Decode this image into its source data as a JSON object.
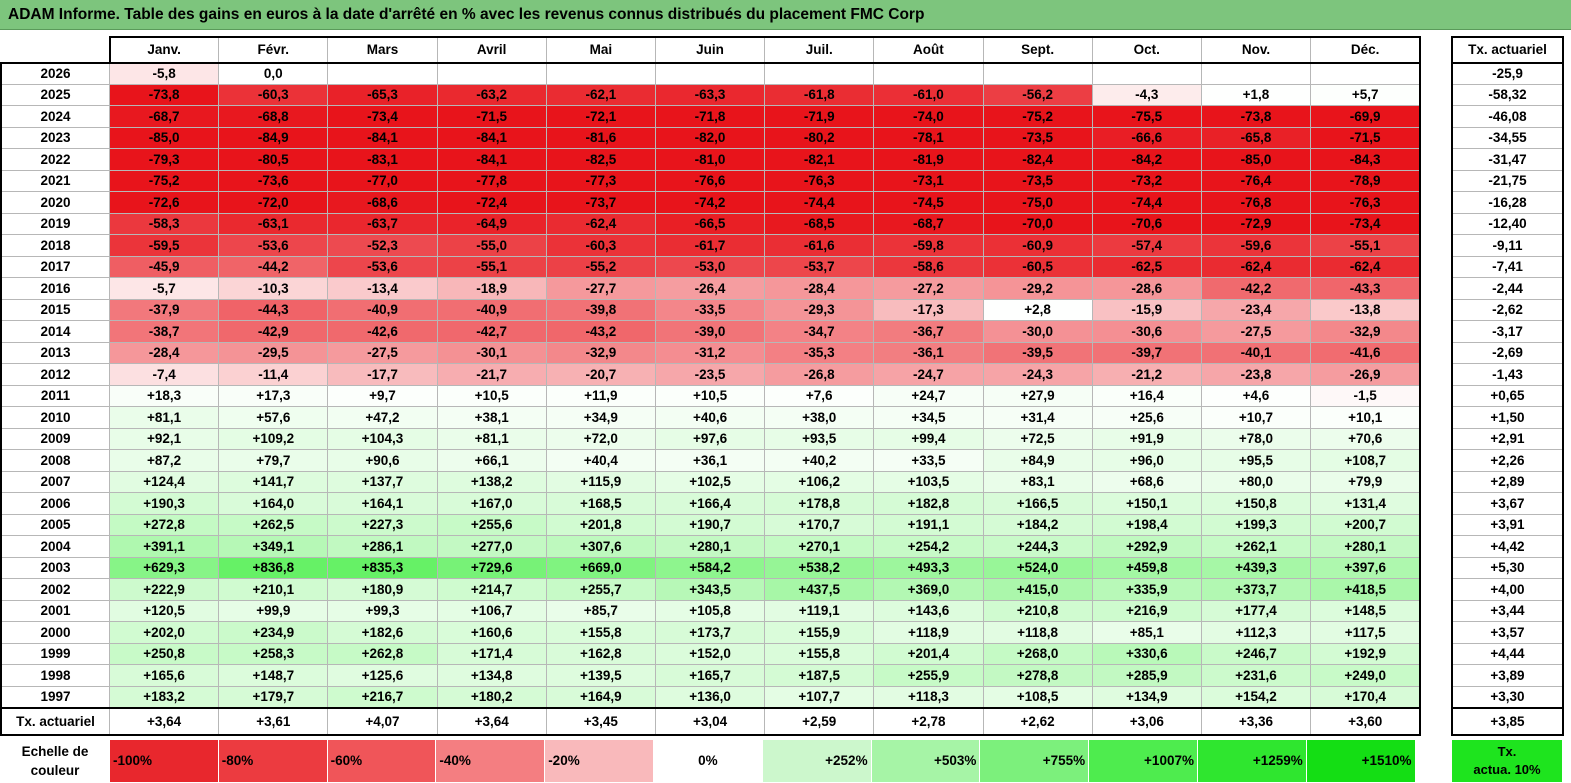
{
  "title": "ADAM Informe. Table des gains en euros à la date d'arrêté en % avec les revenus connus distribués du placement FMC Corp",
  "months": [
    "Janv.",
    "Févr.",
    "Mars",
    "Avril",
    "Mai",
    "Juin",
    "Juil.",
    "Août",
    "Sept.",
    "Oct.",
    "Nov.",
    "Déc."
  ],
  "ta_header": "Tx. actuariel",
  "rows": [
    {
      "year": "2026",
      "values": [
        "-5,8",
        "0,0",
        "",
        "",
        "",
        "",
        "",
        "",
        "",
        "",
        "",
        ""
      ],
      "ta": "-25,9"
    },
    {
      "year": "2025",
      "values": [
        "-73,8",
        "-60,3",
        "-65,3",
        "-63,2",
        "-62,1",
        "-63,3",
        "-61,8",
        "-61,0",
        "-56,2",
        "-4,3",
        "+1,8",
        "+5,7"
      ],
      "ta": "-58,32"
    },
    {
      "year": "2024",
      "values": [
        "-68,7",
        "-68,8",
        "-73,4",
        "-71,5",
        "-72,1",
        "-71,8",
        "-71,9",
        "-74,0",
        "-75,2",
        "-75,5",
        "-73,8",
        "-69,9"
      ],
      "ta": "-46,08"
    },
    {
      "year": "2023",
      "values": [
        "-85,0",
        "-84,9",
        "-84,1",
        "-84,1",
        "-81,6",
        "-82,0",
        "-80,2",
        "-78,1",
        "-73,5",
        "-66,6",
        "-65,8",
        "-71,5"
      ],
      "ta": "-34,55"
    },
    {
      "year": "2022",
      "values": [
        "-79,3",
        "-80,5",
        "-83,1",
        "-84,1",
        "-82,5",
        "-81,0",
        "-82,1",
        "-81,9",
        "-82,4",
        "-84,2",
        "-85,0",
        "-84,3"
      ],
      "ta": "-31,47"
    },
    {
      "year": "2021",
      "values": [
        "-75,2",
        "-73,6",
        "-77,0",
        "-77,8",
        "-77,3",
        "-76,6",
        "-76,3",
        "-73,1",
        "-73,5",
        "-73,2",
        "-76,4",
        "-78,9"
      ],
      "ta": "-21,75"
    },
    {
      "year": "2020",
      "values": [
        "-72,6",
        "-72,0",
        "-68,6",
        "-72,4",
        "-73,7",
        "-74,2",
        "-74,4",
        "-74,5",
        "-75,0",
        "-74,4",
        "-76,8",
        "-76,3"
      ],
      "ta": "-16,28"
    },
    {
      "year": "2019",
      "values": [
        "-58,3",
        "-63,1",
        "-63,7",
        "-64,9",
        "-62,4",
        "-66,5",
        "-68,5",
        "-68,7",
        "-70,0",
        "-70,6",
        "-72,9",
        "-73,4"
      ],
      "ta": "-12,40"
    },
    {
      "year": "2018",
      "values": [
        "-59,5",
        "-53,6",
        "-52,3",
        "-55,0",
        "-60,3",
        "-61,7",
        "-61,6",
        "-59,8",
        "-60,9",
        "-57,4",
        "-59,6",
        "-55,1"
      ],
      "ta": "-9,11"
    },
    {
      "year": "2017",
      "values": [
        "-45,9",
        "-44,2",
        "-53,6",
        "-55,1",
        "-55,2",
        "-53,0",
        "-53,7",
        "-58,6",
        "-60,5",
        "-62,5",
        "-62,4",
        "-62,4"
      ],
      "ta": "-7,41"
    },
    {
      "year": "2016",
      "values": [
        "-5,7",
        "-10,3",
        "-13,4",
        "-18,9",
        "-27,7",
        "-26,4",
        "-28,4",
        "-27,2",
        "-29,2",
        "-28,6",
        "-42,2",
        "-43,3"
      ],
      "ta": "-2,44"
    },
    {
      "year": "2015",
      "values": [
        "-37,9",
        "-44,3",
        "-40,9",
        "-40,9",
        "-39,8",
        "-33,5",
        "-29,3",
        "-17,3",
        "+2,8",
        "-15,9",
        "-23,4",
        "-13,8"
      ],
      "ta": "-2,62"
    },
    {
      "year": "2014",
      "values": [
        "-38,7",
        "-42,9",
        "-42,6",
        "-42,7",
        "-43,2",
        "-39,0",
        "-34,7",
        "-36,7",
        "-30,0",
        "-30,6",
        "-27,5",
        "-32,9"
      ],
      "ta": "-3,17"
    },
    {
      "year": "2013",
      "values": [
        "-28,4",
        "-29,5",
        "-27,5",
        "-30,1",
        "-32,9",
        "-31,2",
        "-35,3",
        "-36,1",
        "-39,5",
        "-39,7",
        "-40,1",
        "-41,6"
      ],
      "ta": "-2,69"
    },
    {
      "year": "2012",
      "values": [
        "-7,4",
        "-11,4",
        "-17,7",
        "-21,7",
        "-20,7",
        "-23,5",
        "-26,8",
        "-24,7",
        "-24,3",
        "-21,2",
        "-23,8",
        "-26,9"
      ],
      "ta": "-1,43"
    },
    {
      "year": "2011",
      "values": [
        "+18,3",
        "+17,3",
        "+9,7",
        "+10,5",
        "+11,9",
        "+10,5",
        "+7,6",
        "+24,7",
        "+27,9",
        "+16,4",
        "+4,6",
        "-1,5"
      ],
      "ta": "+0,65"
    },
    {
      "year": "2010",
      "values": [
        "+81,1",
        "+57,6",
        "+47,2",
        "+38,1",
        "+34,9",
        "+40,6",
        "+38,0",
        "+34,5",
        "+31,4",
        "+25,6",
        "+10,7",
        "+10,1"
      ],
      "ta": "+1,50"
    },
    {
      "year": "2009",
      "values": [
        "+92,1",
        "+109,2",
        "+104,3",
        "+81,1",
        "+72,0",
        "+97,6",
        "+93,5",
        "+99,4",
        "+72,5",
        "+91,9",
        "+78,0",
        "+70,6"
      ],
      "ta": "+2,91"
    },
    {
      "year": "2008",
      "values": [
        "+87,2",
        "+79,7",
        "+90,6",
        "+66,1",
        "+40,4",
        "+36,1",
        "+40,2",
        "+33,5",
        "+84,9",
        "+96,0",
        "+95,5",
        "+108,7"
      ],
      "ta": "+2,26"
    },
    {
      "year": "2007",
      "values": [
        "+124,4",
        "+141,7",
        "+137,7",
        "+138,2",
        "+115,9",
        "+102,5",
        "+106,2",
        "+103,5",
        "+83,1",
        "+68,6",
        "+80,0",
        "+79,9"
      ],
      "ta": "+2,89"
    },
    {
      "year": "2006",
      "values": [
        "+190,3",
        "+164,0",
        "+164,1",
        "+167,0",
        "+168,5",
        "+166,4",
        "+178,8",
        "+182,8",
        "+166,5",
        "+150,1",
        "+150,8",
        "+131,4"
      ],
      "ta": "+3,67"
    },
    {
      "year": "2005",
      "values": [
        "+272,8",
        "+262,5",
        "+227,3",
        "+255,6",
        "+201,8",
        "+190,7",
        "+170,7",
        "+191,1",
        "+184,2",
        "+198,4",
        "+199,3",
        "+200,7"
      ],
      "ta": "+3,91"
    },
    {
      "year": "2004",
      "values": [
        "+391,1",
        "+349,1",
        "+286,1",
        "+277,0",
        "+307,6",
        "+280,1",
        "+270,1",
        "+254,2",
        "+244,3",
        "+292,9",
        "+262,1",
        "+280,1"
      ],
      "ta": "+4,42"
    },
    {
      "year": "2003",
      "values": [
        "+629,3",
        "+836,8",
        "+835,3",
        "+729,6",
        "+669,0",
        "+584,2",
        "+538,2",
        "+493,3",
        "+524,0",
        "+459,8",
        "+439,3",
        "+397,6"
      ],
      "ta": "+5,30"
    },
    {
      "year": "2002",
      "values": [
        "+222,9",
        "+210,1",
        "+180,9",
        "+214,7",
        "+255,7",
        "+343,5",
        "+437,5",
        "+369,0",
        "+415,0",
        "+335,9",
        "+373,7",
        "+418,5"
      ],
      "ta": "+4,00"
    },
    {
      "year": "2001",
      "values": [
        "+120,5",
        "+99,9",
        "+99,3",
        "+106,7",
        "+85,7",
        "+105,8",
        "+119,1",
        "+143,6",
        "+210,8",
        "+216,9",
        "+177,4",
        "+148,5"
      ],
      "ta": "+3,44"
    },
    {
      "year": "2000",
      "values": [
        "+202,0",
        "+234,9",
        "+182,6",
        "+160,6",
        "+155,8",
        "+173,7",
        "+155,9",
        "+118,9",
        "+118,8",
        "+85,1",
        "+112,3",
        "+117,5"
      ],
      "ta": "+3,57"
    },
    {
      "year": "1999",
      "values": [
        "+250,8",
        "+258,3",
        "+262,8",
        "+171,4",
        "+162,8",
        "+152,0",
        "+155,8",
        "+201,4",
        "+268,0",
        "+330,6",
        "+246,7",
        "+192,9"
      ],
      "ta": "+4,44"
    },
    {
      "year": "1998",
      "values": [
        "+165,6",
        "+148,7",
        "+125,6",
        "+134,8",
        "+139,5",
        "+165,7",
        "+187,5",
        "+255,9",
        "+278,8",
        "+285,9",
        "+231,6",
        "+249,0"
      ],
      "ta": "+3,89"
    },
    {
      "year": "1997",
      "values": [
        "+183,2",
        "+179,7",
        "+216,7",
        "+180,2",
        "+164,9",
        "+136,0",
        "+107,7",
        "+118,3",
        "+108,5",
        "+134,9",
        "+154,2",
        "+170,4"
      ],
      "ta": "+3,30"
    }
  ],
  "summary": {
    "label": "Tx. actuariel",
    "values": [
      "+3,64",
      "+3,61",
      "+4,07",
      "+3,64",
      "+3,45",
      "+3,04",
      "+2,59",
      "+2,78",
      "+2,62",
      "+3,06",
      "+3,36",
      "+3,60"
    ],
    "ta": "+3,85"
  },
  "legend": {
    "label": "Echelle de\ncouleur",
    "scale": [
      {
        "text": "-100%",
        "color": "#e8272d",
        "kind": "neg"
      },
      {
        "text": "-80%",
        "color": "#ec3b40",
        "kind": "neg"
      },
      {
        "text": "-60%",
        "color": "#f05559",
        "kind": "neg"
      },
      {
        "text": "-40%",
        "color": "#f47e81",
        "kind": "neg"
      },
      {
        "text": "-20%",
        "color": "#f9b9bb",
        "kind": "neg"
      },
      {
        "text": "0%",
        "color": "#ffffff",
        "kind": "zero"
      },
      {
        "text": "+252%",
        "color": "#ccf7cc",
        "kind": "pos"
      },
      {
        "text": "+503%",
        "color": "#a6f4a6",
        "kind": "pos"
      },
      {
        "text": "+755%",
        "color": "#7cf07c",
        "kind": "pos"
      },
      {
        "text": "+1007%",
        "color": "#4eec4e",
        "kind": "pos"
      },
      {
        "text": "+1259%",
        "color": "#2fe62f",
        "kind": "pos"
      },
      {
        "text": "+1510%",
        "color": "#14de14",
        "kind": "pos"
      }
    ],
    "ta_label": "Tx.\nactua. 10%",
    "ta_color": "#1ee41e"
  }
}
